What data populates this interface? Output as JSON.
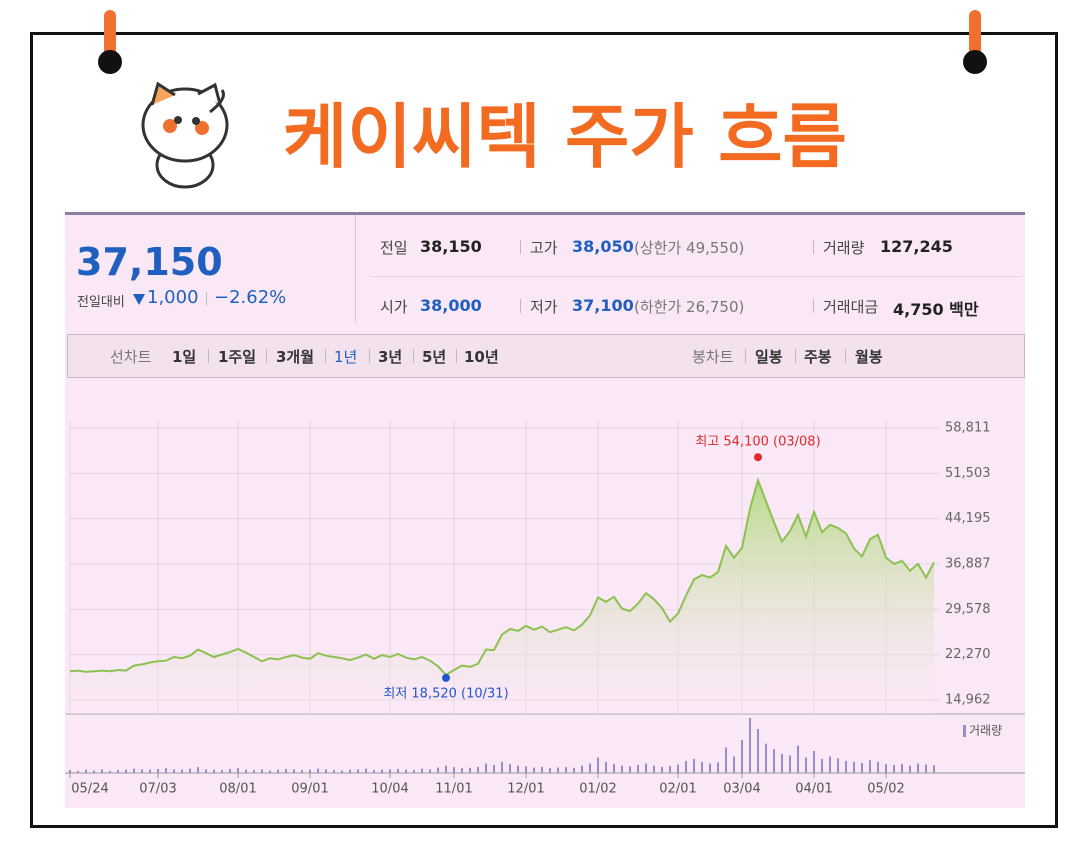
{
  "header": {
    "title": "케이씨텍 주가 흐름"
  },
  "quote": {
    "price": "37,150",
    "change_label": "전일대비",
    "change": "1,000",
    "change_rate": "−2.62%"
  },
  "summary": {
    "rows": [
      [
        {
          "label": "전일",
          "value": "38,150"
        },
        {
          "label": "고가",
          "value": "38,050",
          "note": "(상한가 49,550)"
        },
        {
          "label": "거래량",
          "value": "127,245"
        }
      ],
      [
        {
          "label": "시가",
          "value": "38,000"
        },
        {
          "label": "저가",
          "value": "37,100",
          "note": "(하한가 26,750)"
        },
        {
          "label": "거래대금",
          "value": "4,750 백만"
        }
      ]
    ]
  },
  "tabs": {
    "line_label": "선차트",
    "line": [
      "1일",
      "1주일",
      "3개월",
      "1년",
      "3년",
      "5년",
      "10년"
    ],
    "candle_label": "봉차트",
    "candle": [
      "일봉",
      "주봉",
      "월봉"
    ]
  },
  "chart_data": {
    "type": "line",
    "categories": [
      "05/24",
      null,
      null,
      null,
      null,
      null,
      null,
      null,
      null,
      null,
      null,
      "07/03",
      null,
      null,
      null,
      null,
      null,
      null,
      null,
      null,
      null,
      "08/01",
      null,
      null,
      null,
      null,
      null,
      null,
      null,
      null,
      "09/01",
      null,
      null,
      null,
      null,
      null,
      null,
      null,
      null,
      null,
      "10/04",
      null,
      null,
      null,
      null,
      null,
      null,
      null,
      "11/01",
      null,
      null,
      null,
      null,
      null,
      null,
      null,
      null,
      "12/01",
      null,
      null,
      null,
      null,
      null,
      null,
      null,
      null,
      "01/02",
      null,
      null,
      null,
      null,
      null,
      null,
      null,
      null,
      null,
      "02/01",
      null,
      null,
      null,
      null,
      null,
      null,
      null,
      "03/04",
      null,
      null,
      null,
      null,
      null,
      null,
      null,
      null,
      "04/01",
      null,
      null,
      null,
      null,
      null,
      null,
      null,
      null,
      "05/02",
      null,
      null,
      null,
      null,
      null,
      null
    ],
    "series": [
      {
        "color": "#8cc152",
        "values": [
          19600,
          19700,
          19500,
          19600,
          19700,
          19600,
          19800,
          19700,
          20500,
          20700,
          21000,
          21200,
          21300,
          21900,
          21700,
          22100,
          23100,
          22500,
          21900,
          22300,
          22700,
          23200,
          22600,
          21900,
          21200,
          21700,
          21500,
          21900,
          22200,
          21800,
          21600,
          22500,
          22100,
          21900,
          21700,
          21400,
          21800,
          22300,
          21600,
          22200,
          21900,
          22400,
          21800,
          21500,
          21900,
          21300,
          20400,
          19000,
          19800,
          20500,
          20300,
          20800,
          23100,
          23000,
          25500,
          26400,
          26100,
          26900,
          26300,
          26800,
          25900,
          26300,
          26700,
          26200,
          27100,
          28600,
          31500,
          30800,
          31600,
          29700,
          29300,
          30500,
          32200,
          31200,
          29800,
          27600,
          28900,
          31800,
          34400,
          35100,
          34700,
          35600,
          39800,
          37900,
          39500,
          45800,
          50400,
          47000,
          43600,
          40500,
          42200,
          44800,
          41300,
          45300,
          42000,
          43200,
          42700,
          41800,
          39400,
          38100,
          40900,
          41600,
          37900,
          36900,
          37400,
          35800,
          36900,
          34700,
          37150
        ]
      },
      {
        "name": "거래량",
        "color": "#9b8cc8",
        "values": [
          80,
          60,
          90,
          70,
          100,
          60,
          80,
          90,
          120,
          100,
          90,
          110,
          130,
          100,
          90,
          120,
          160,
          100,
          90,
          80,
          110,
          130,
          90,
          80,
          100,
          70,
          90,
          110,
          100,
          80,
          90,
          120,
          100,
          80,
          70,
          90,
          100,
          120,
          80,
          90,
          100,
          110,
          90,
          80,
          120,
          100,
          150,
          200,
          160,
          130,
          140,
          170,
          260,
          220,
          300,
          240,
          200,
          180,
          150,
          170,
          130,
          150,
          160,
          140,
          200,
          260,
          420,
          300,
          250,
          200,
          180,
          220,
          260,
          200,
          170,
          190,
          230,
          330,
          380,
          300,
          260,
          290,
          700,
          450,
          900,
          1500,
          1200,
          800,
          650,
          520,
          480,
          750,
          420,
          600,
          380,
          450,
          400,
          330,
          300,
          270,
          350,
          300,
          240,
          220,
          250,
          200,
          260,
          230,
          210
        ]
      }
    ],
    "ylim": [
      14962,
      58811
    ],
    "yticks": [
      {
        "value": 58811,
        "label": "58,811"
      },
      {
        "value": 51503,
        "label": "51,503"
      },
      {
        "value": 44195,
        "label": "44,195"
      },
      {
        "value": 36887,
        "label": "36,887"
      },
      {
        "value": 29578,
        "label": "29,578"
      },
      {
        "value": 22270,
        "label": "22,270"
      },
      {
        "value": 14962,
        "label": "14,962"
      }
    ],
    "grid": true,
    "high": {
      "value": 54100,
      "label": "최고 54,100 (03/08)",
      "color": "#e02a2a"
    },
    "low": {
      "value": 18520,
      "label": "최저 18,520 (10/31)",
      "color": "#2255cc"
    }
  }
}
